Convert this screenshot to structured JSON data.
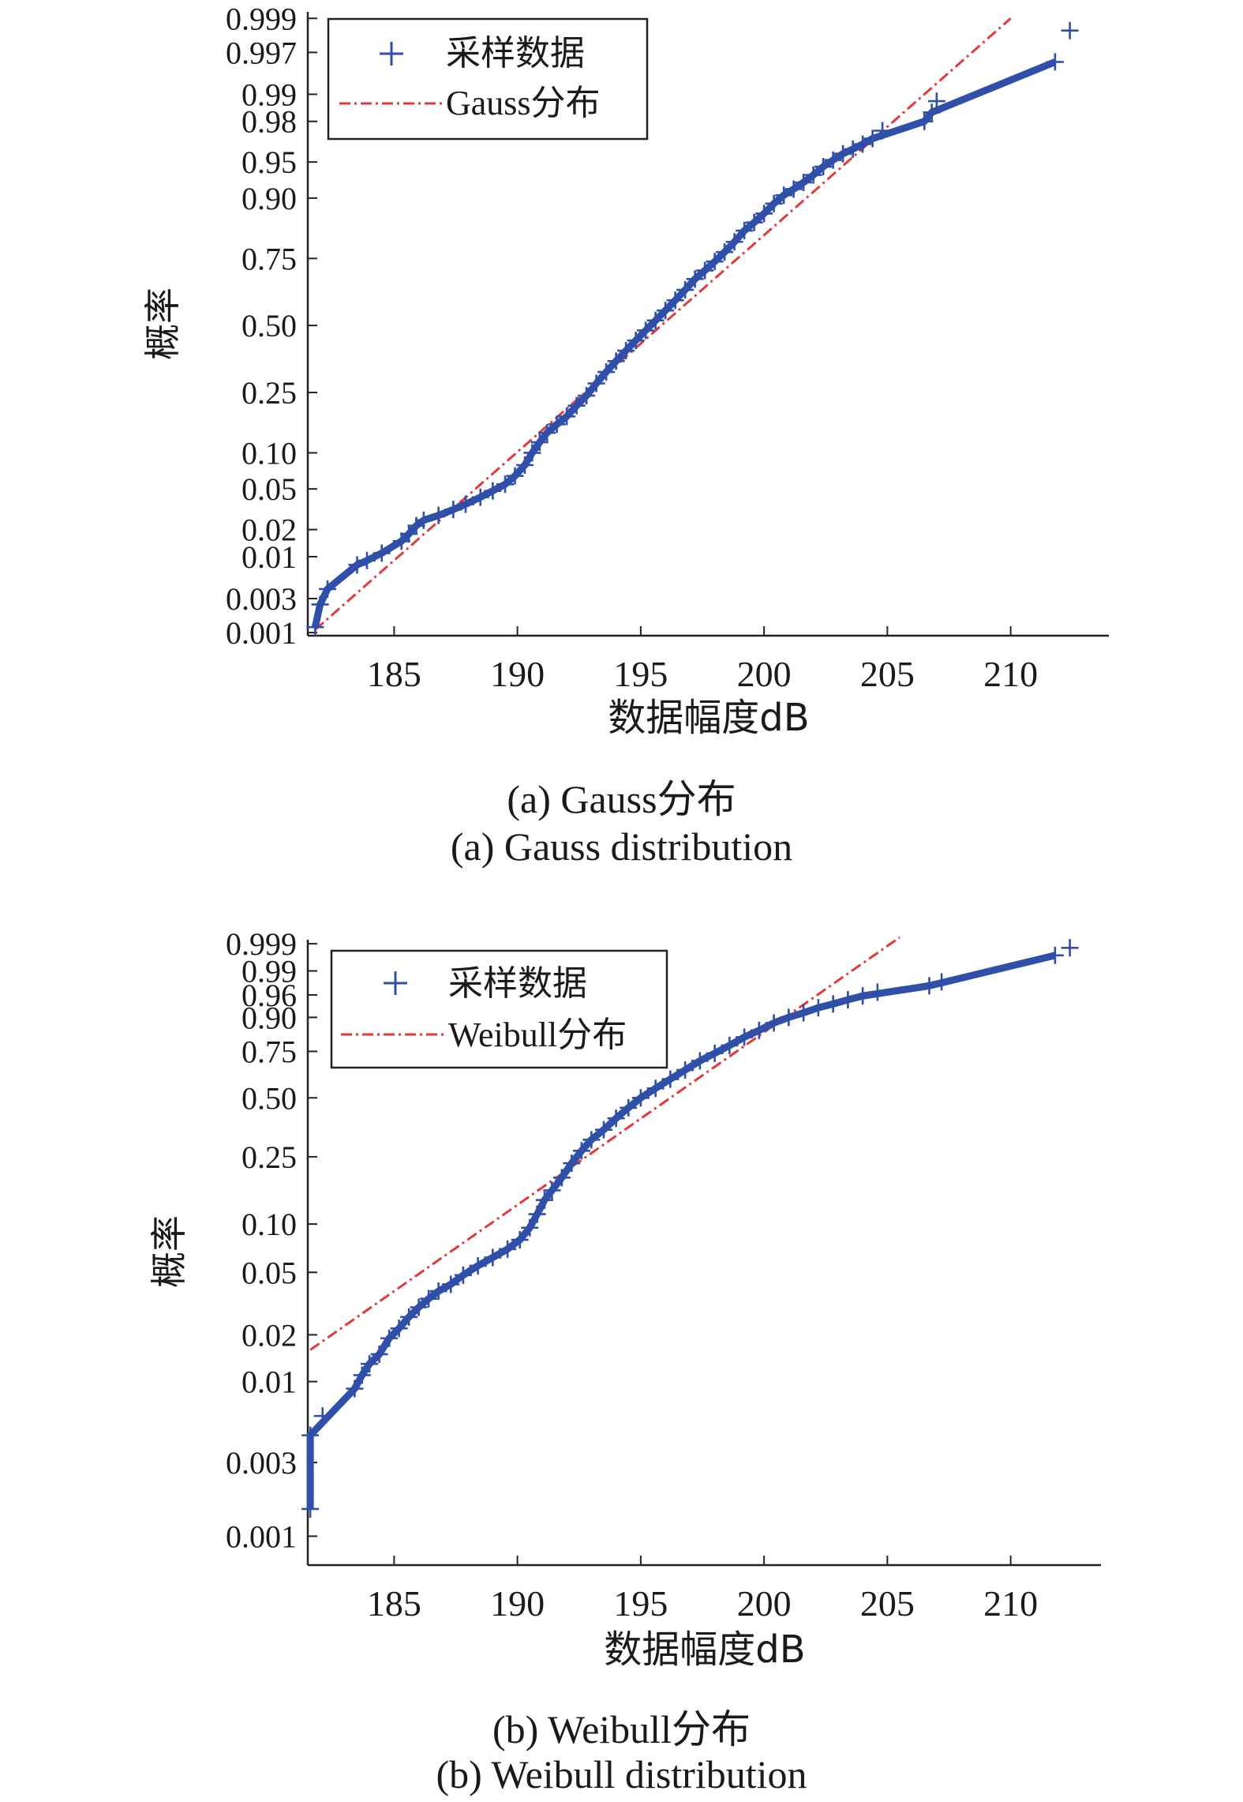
{
  "colors": {
    "samples": "#2f4fa8",
    "fit": "#e03a3a",
    "axis": "#222222"
  },
  "chart_data": [
    {
      "type": "scatter",
      "xlabel": "数据幅度dB",
      "ylabel": "概率",
      "xlim": [
        181.5,
        213.5
      ],
      "xticks": [
        "185",
        "190",
        "195",
        "200",
        "205",
        "210"
      ],
      "yscale": "normal-probability",
      "yticks": [
        "0.001",
        "0.003",
        "0.01",
        "0.02",
        "0.05",
        "0.10",
        "0.25",
        "0.50",
        "0.75",
        "0.90",
        "0.95",
        "0.98",
        "0.99",
        "0.997",
        "0.999"
      ],
      "legend": {
        "placement": "top-left",
        "entries": [
          "采样数据",
          "Gauss分布"
        ]
      },
      "caption_cn": "(a) Gauss分布",
      "caption_en": "(a) Gauss distribution",
      "series": [
        {
          "kind": "samples",
          "x": [
            181.8,
            182.0,
            182.3,
            183.5,
            183.9,
            184.5,
            185.3,
            185.6,
            185.9,
            186.2,
            186.8,
            187.4,
            187.9,
            188.5,
            189.0,
            189.5,
            189.9,
            190.3,
            190.6,
            190.9,
            191.2,
            191.6,
            192.0,
            192.4,
            192.8,
            193.2,
            193.6,
            194.0,
            194.4,
            194.8,
            195.2,
            195.6,
            196.0,
            196.4,
            196.8,
            197.2,
            197.6,
            198.0,
            198.4,
            198.8,
            199.2,
            199.6,
            200.0,
            200.4,
            200.8,
            201.2,
            201.6,
            202.0,
            202.4,
            202.8,
            203.2,
            203.6,
            204.0,
            204.4,
            204.8,
            206.5,
            206.8,
            207.0,
            211.8,
            212.4
          ],
          "p": [
            0.0012,
            0.0025,
            0.004,
            0.008,
            0.009,
            0.011,
            0.015,
            0.018,
            0.022,
            0.025,
            0.028,
            0.032,
            0.036,
            0.042,
            0.048,
            0.055,
            0.065,
            0.08,
            0.1,
            0.12,
            0.14,
            0.16,
            0.18,
            0.21,
            0.24,
            0.28,
            0.32,
            0.36,
            0.4,
            0.44,
            0.48,
            0.52,
            0.56,
            0.6,
            0.64,
            0.68,
            0.71,
            0.74,
            0.77,
            0.8,
            0.83,
            0.85,
            0.87,
            0.89,
            0.905,
            0.915,
            0.925,
            0.935,
            0.945,
            0.952,
            0.958,
            0.962,
            0.966,
            0.97,
            0.975,
            0.98,
            0.984,
            0.988,
            0.996,
            0.9985
          ]
        },
        {
          "kind": "fit",
          "x": [
            181.8,
            210.0
          ],
          "p": [
            0.0011,
            0.999
          ]
        }
      ]
    },
    {
      "type": "scatter",
      "xlabel": "数据幅度dB",
      "ylabel": "概率",
      "xlim": [
        181.5,
        213.5
      ],
      "xticks": [
        "185",
        "190",
        "195",
        "200",
        "205",
        "210"
      ],
      "yscale": "weibull-probability",
      "yticks": [
        "0.001",
        "0.003",
        "0.01",
        "0.02",
        "0.05",
        "0.10",
        "0.25",
        "0.50",
        "0.75",
        "0.90",
        "0.96",
        "0.99",
        "0.999"
      ],
      "legend": {
        "placement": "top-left",
        "entries": [
          "采样数据",
          "Weibull分布"
        ]
      },
      "caption_cn": "(b) Weibull分布",
      "caption_en": "(b) Weibull distribution",
      "series": [
        {
          "kind": "samples",
          "x": [
            181.6,
            181.6,
            182.1,
            183.4,
            183.7,
            184.0,
            184.4,
            184.8,
            185.2,
            185.6,
            186.0,
            186.4,
            186.8,
            187.3,
            187.8,
            188.4,
            189.0,
            189.6,
            190.1,
            190.5,
            190.8,
            191.1,
            191.4,
            191.8,
            192.2,
            192.6,
            193.0,
            193.5,
            194.0,
            194.5,
            195.0,
            195.6,
            196.2,
            196.8,
            197.4,
            198.0,
            198.6,
            199.2,
            199.8,
            200.4,
            201.0,
            201.6,
            202.2,
            202.8,
            203.4,
            204.0,
            204.6,
            206.7,
            207.2,
            211.8,
            212.4
          ],
          "p": [
            0.0015,
            0.0045,
            0.006,
            0.009,
            0.011,
            0.013,
            0.015,
            0.019,
            0.022,
            0.026,
            0.03,
            0.034,
            0.038,
            0.042,
            0.048,
            0.055,
            0.062,
            0.07,
            0.08,
            0.095,
            0.115,
            0.14,
            0.16,
            0.19,
            0.23,
            0.27,
            0.31,
            0.35,
            0.4,
            0.45,
            0.5,
            0.55,
            0.6,
            0.65,
            0.7,
            0.74,
            0.78,
            0.82,
            0.85,
            0.88,
            0.9,
            0.915,
            0.93,
            0.94,
            0.95,
            0.958,
            0.965,
            0.975,
            0.98,
            0.997,
            0.9985
          ]
        },
        {
          "kind": "fit",
          "x": [
            181.6,
            205.5
          ],
          "p": [
            0.016,
            0.9995
          ]
        }
      ]
    }
  ]
}
